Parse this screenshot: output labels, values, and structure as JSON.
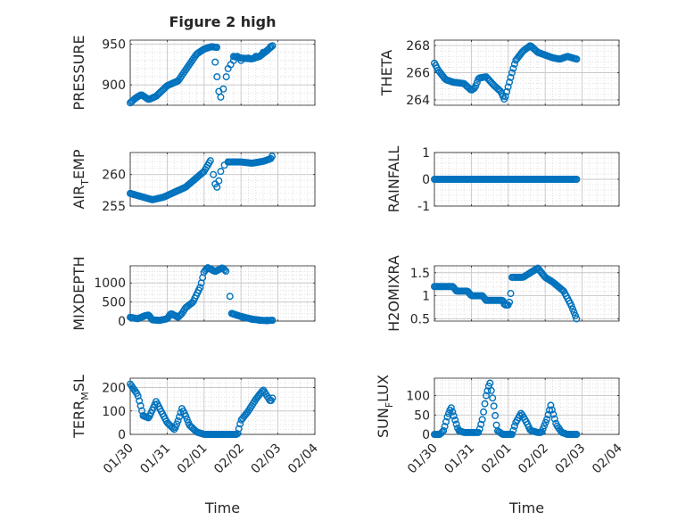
{
  "title": "Figure 2 high",
  "marker_color": "#0072BD",
  "axis_color": "#262626",
  "grid_color": "#d9d9d9",
  "chart_data": {
    "type": "scatter",
    "x_tick_labels": [
      "01/30",
      "01/31",
      "02/01",
      "02/02",
      "02/03",
      "02/04"
    ],
    "x_range_days": [
      0,
      5
    ],
    "xlabel": "Time",
    "panels": [
      {
        "id": "pressure",
        "ylabel": "PRESSURE",
        "ylim": [
          875,
          955
        ],
        "yticks": [
          "900",
          "950"
        ],
        "ytick_values": [
          900,
          950
        ],
        "anchors": [
          [
            0,
            878
          ],
          [
            0.15,
            884
          ],
          [
            0.3,
            888
          ],
          [
            0.5,
            882
          ],
          [
            0.7,
            886
          ],
          [
            1.0,
            899
          ],
          [
            1.3,
            905
          ],
          [
            1.6,
            925
          ],
          [
            1.8,
            938
          ],
          [
            2.0,
            944
          ],
          [
            2.2,
            947
          ],
          [
            2.35,
            946
          ]
        ],
        "extra_points": [
          [
            2.3,
            928
          ],
          [
            2.35,
            910
          ],
          [
            2.4,
            892
          ],
          [
            2.45,
            885
          ],
          [
            2.52,
            895
          ],
          [
            2.6,
            910
          ],
          [
            2.65,
            920
          ],
          [
            2.72,
            925
          ],
          [
            2.8,
            930
          ],
          [
            2.9,
            935
          ],
          [
            3.0,
            930
          ],
          [
            3.2,
            933
          ],
          [
            3.4,
            935
          ],
          [
            3.6,
            940
          ],
          [
            3.7,
            942
          ],
          [
            3.8,
            947
          ],
          [
            3.85,
            948
          ]
        ],
        "extra_anchors": [
          [
            2.8,
            935
          ],
          [
            3.0,
            933
          ],
          [
            3.3,
            932
          ],
          [
            3.5,
            935
          ],
          [
            3.7,
            942
          ],
          [
            3.85,
            948
          ]
        ]
      },
      {
        "id": "theta",
        "ylabel": "THETA",
        "ylim": [
          263.6,
          268.4
        ],
        "yticks": [
          "264",
          "266",
          "268"
        ],
        "ytick_values": [
          264,
          266,
          268
        ],
        "anchors": [
          [
            0,
            266.7
          ],
          [
            0.1,
            266.2
          ],
          [
            0.3,
            265.5
          ],
          [
            0.5,
            265.3
          ],
          [
            0.8,
            265.2
          ],
          [
            1.0,
            264.7
          ],
          [
            1.1,
            264.9
          ],
          [
            1.2,
            265.6
          ],
          [
            1.4,
            265.7
          ],
          [
            1.6,
            265.1
          ],
          [
            1.8,
            264.6
          ],
          [
            1.9,
            264.0
          ],
          [
            2.0,
            265.0
          ],
          [
            2.1,
            266.0
          ],
          [
            2.2,
            266.9
          ],
          [
            2.4,
            267.6
          ],
          [
            2.6,
            268.0
          ],
          [
            2.8,
            267.5
          ],
          [
            3.0,
            267.3
          ],
          [
            3.2,
            267.1
          ],
          [
            3.4,
            267.0
          ],
          [
            3.6,
            267.2
          ],
          [
            3.85,
            267.0
          ]
        ]
      },
      {
        "id": "air_temp",
        "ylabel": "AIR_TEMP",
        "ylim": [
          255,
          263.5
        ],
        "yticks": [
          "255",
          "260"
        ],
        "ytick_values": [
          255,
          260
        ],
        "anchors": [
          [
            0,
            257
          ],
          [
            0.3,
            256.5
          ],
          [
            0.6,
            256
          ],
          [
            0.9,
            256.4
          ],
          [
            1.2,
            257.2
          ],
          [
            1.5,
            258
          ],
          [
            1.8,
            259.5
          ],
          [
            2.0,
            260.5
          ],
          [
            2.15,
            262
          ],
          [
            2.2,
            262.5
          ]
        ],
        "extra_points": [
          [
            2.25,
            260
          ],
          [
            2.3,
            258.5
          ],
          [
            2.35,
            258
          ],
          [
            2.4,
            259
          ],
          [
            2.45,
            260.5
          ],
          [
            2.55,
            261.5
          ],
          [
            2.65,
            262
          ]
        ],
        "extra_anchors": [
          [
            2.65,
            262
          ],
          [
            3.0,
            262
          ],
          [
            3.3,
            261.8
          ],
          [
            3.6,
            262.1
          ],
          [
            3.8,
            262.5
          ],
          [
            3.85,
            263
          ]
        ]
      },
      {
        "id": "rainfall",
        "ylabel": "RAINFALL",
        "ylim": [
          -1,
          1
        ],
        "yticks": [
          "-1",
          "0",
          "1"
        ],
        "ytick_values": [
          -1,
          0,
          1
        ],
        "anchors": [
          [
            0,
            0
          ],
          [
            3.85,
            0
          ]
        ]
      },
      {
        "id": "mixdepth",
        "ylabel": "MIXDEPTH",
        "ylim": [
          0,
          1450
        ],
        "yticks": [
          "0",
          "500",
          "1000"
        ],
        "ytick_values": [
          0,
          500,
          1000
        ],
        "anchors": [
          [
            0,
            100
          ],
          [
            0.2,
            60
          ],
          [
            0.4,
            140
          ],
          [
            0.5,
            160
          ],
          [
            0.6,
            30
          ],
          [
            0.8,
            20
          ],
          [
            1.0,
            60
          ],
          [
            1.1,
            200
          ],
          [
            1.3,
            100
          ],
          [
            1.4,
            200
          ],
          [
            1.5,
            350
          ],
          [
            1.7,
            500
          ],
          [
            1.9,
            900
          ],
          [
            2.0,
            1300
          ],
          [
            2.1,
            1400
          ],
          [
            2.3,
            1300
          ],
          [
            2.4,
            1350
          ],
          [
            2.5,
            1400
          ],
          [
            2.6,
            1300
          ]
        ],
        "extra_points": [
          [
            2.7,
            650
          ],
          [
            2.75,
            200
          ],
          [
            2.8,
            180
          ],
          [
            2.9,
            150
          ],
          [
            3.0,
            120
          ],
          [
            3.1,
            90
          ],
          [
            3.3,
            50
          ],
          [
            3.5,
            20
          ],
          [
            3.7,
            10
          ],
          [
            3.85,
            20
          ]
        ],
        "extra_anchors": [
          [
            2.75,
            200
          ],
          [
            3.0,
            120
          ],
          [
            3.3,
            50
          ],
          [
            3.6,
            15
          ],
          [
            3.85,
            20
          ]
        ]
      },
      {
        "id": "h2omixra",
        "ylabel": "H2OMIXRA",
        "ylim": [
          0.45,
          1.65
        ],
        "yticks": [
          "0.5",
          "1",
          "1.5"
        ],
        "ytick_values": [
          0.5,
          1,
          1.5
        ],
        "anchors": [
          [
            0,
            1.2
          ],
          [
            0.5,
            1.2
          ],
          [
            0.6,
            1.1
          ],
          [
            0.9,
            1.1
          ],
          [
            1.0,
            1.0
          ],
          [
            1.3,
            1.0
          ],
          [
            1.4,
            0.9
          ],
          [
            1.85,
            0.9
          ],
          [
            1.9,
            0.8
          ],
          [
            2.0,
            0.8
          ],
          [
            2.05,
            0.9
          ],
          [
            2.1,
            1.4
          ],
          [
            2.4,
            1.4
          ],
          [
            2.6,
            1.5
          ],
          [
            2.8,
            1.6
          ],
          [
            3.0,
            1.4
          ],
          [
            3.2,
            1.3
          ],
          [
            3.5,
            1.1
          ],
          [
            3.7,
            0.8
          ],
          [
            3.8,
            0.6
          ],
          [
            3.85,
            0.5
          ]
        ]
      },
      {
        "id": "terr_msl",
        "ylabel": "TERR_MSL",
        "ylim": [
          0,
          240
        ],
        "yticks": [
          "0",
          "100",
          "200"
        ],
        "ytick_values": [
          0,
          100,
          200
        ],
        "anchors": [
          [
            0,
            215
          ],
          [
            0.2,
            170
          ],
          [
            0.35,
            80
          ],
          [
            0.5,
            70
          ],
          [
            0.7,
            140
          ],
          [
            0.8,
            110
          ],
          [
            1.0,
            50
          ],
          [
            1.2,
            20
          ],
          [
            1.3,
            60
          ],
          [
            1.4,
            110
          ],
          [
            1.5,
            80
          ],
          [
            1.6,
            40
          ],
          [
            1.8,
            10
          ],
          [
            2.0,
            0
          ],
          [
            2.2,
            0
          ],
          [
            2.9,
            0
          ],
          [
            3.0,
            60
          ],
          [
            3.2,
            100
          ],
          [
            3.4,
            150
          ],
          [
            3.6,
            190
          ],
          [
            3.8,
            140
          ],
          [
            3.85,
            155
          ]
        ]
      },
      {
        "id": "sun_flux",
        "ylabel": "SUN_FLUX",
        "ylim": [
          0,
          145
        ],
        "yticks": [
          "0",
          "50",
          "100"
        ],
        "ytick_values": [
          0,
          50,
          100
        ],
        "anchors": [
          [
            0,
            0
          ],
          [
            0.15,
            0
          ],
          [
            0.25,
            10
          ],
          [
            0.35,
            45
          ],
          [
            0.45,
            70
          ],
          [
            0.55,
            40
          ],
          [
            0.65,
            10
          ],
          [
            0.8,
            5
          ],
          [
            1.2,
            5
          ],
          [
            1.3,
            40
          ],
          [
            1.4,
            100
          ],
          [
            1.5,
            135
          ],
          [
            1.6,
            80
          ],
          [
            1.7,
            10
          ],
          [
            1.85,
            0
          ],
          [
            2.1,
            0
          ],
          [
            2.2,
            30
          ],
          [
            2.35,
            55
          ],
          [
            2.5,
            30
          ],
          [
            2.6,
            10
          ],
          [
            2.8,
            5
          ],
          [
            2.9,
            5
          ],
          [
            3.05,
            40
          ],
          [
            3.15,
            75
          ],
          [
            3.3,
            25
          ],
          [
            3.45,
            5
          ],
          [
            3.6,
            0
          ],
          [
            3.85,
            0
          ]
        ]
      }
    ]
  }
}
